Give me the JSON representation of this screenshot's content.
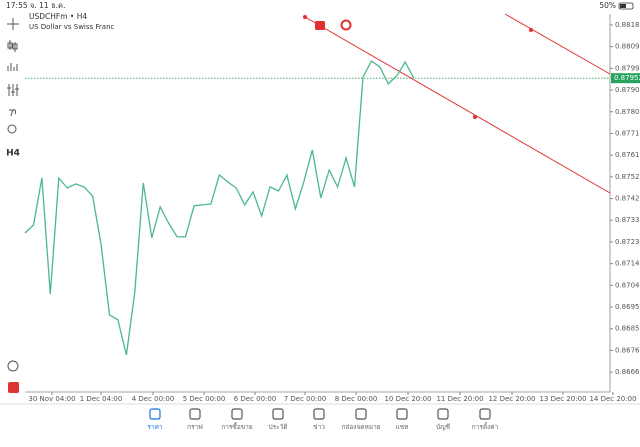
{
  "status_bar": {
    "time": "17:55",
    "date": "จ. 11 ธ.ค.",
    "battery": "50%"
  },
  "toolbar": {
    "timeframe": "H4"
  },
  "chart_data": {
    "type": "line",
    "symbol": "USDCHFm • H4",
    "description": "US Dollar vs Swiss Franc",
    "color": "#4cb88a",
    "values": [
      0.87274,
      0.87309,
      0.87515,
      0.87007,
      0.87515,
      0.87471,
      0.87489,
      0.87476,
      0.87436,
      0.87226,
      0.86915,
      0.86894,
      0.8674,
      0.87016,
      0.87493,
      0.87253,
      0.87388,
      0.87318,
      0.87257,
      0.87257,
      0.87393,
      0.87397,
      0.87401,
      0.87528,
      0.87498,
      0.87471,
      0.87397,
      0.87454,
      0.87349,
      0.87476,
      0.87458,
      0.87528,
      0.8738,
      0.87498,
      0.87638,
      0.87428,
      0.8755,
      0.87476,
      0.87603,
      0.87476,
      0.87957,
      0.88027,
      0.88001,
      0.87927,
      0.87962,
      0.88023,
      0.87953
    ],
    "ylim": [
      0.86578,
      0.88233
    ],
    "yticks": [
      0.88185,
      {
        "value": 0.8809,
        "label": "0.88090"
      },
      0.87995,
      {
        "value": 0.879,
        "label": "0.87900"
      },
      0.87805,
      {
        "value": 0.8771,
        "label": "0.87710"
      },
      0.87615,
      {
        "value": 0.8752,
        "label": "0.87520"
      },
      0.87425,
      {
        "value": 0.8733,
        "label": "0.87330"
      },
      0.87235,
      {
        "value": 0.8714,
        "label": "0.87140"
      },
      0.87045,
      {
        "value": 0.8695,
        "label": "0.86950"
      },
      0.86855,
      {
        "value": 0.8676,
        "label": "0.86760"
      },
      0.86665
    ],
    "x_tick_labels": [
      "30 Nov 04:00",
      "1 Dec 04:00",
      "4 Dec 00:00",
      "5 Dec 00:00",
      "6 Dec 00:00",
      "7 Dec 00:00",
      "8 Dec 00:00",
      "10 Dec 20:00",
      "11 Dec 20:00",
      "12 Dec 20:00",
      "13 Dec 20:00",
      "14 Dec 20:00"
    ],
    "current_price": 0.87952,
    "current_price_color": "#27a35e"
  },
  "nav": {
    "items": [
      "ราคา",
      "กราฟ",
      "การซื้อขาย",
      "ประวัติ",
      "ข่าว",
      "กล่องจดหมาย",
      "แชท",
      "บัญชี",
      "การตั้งค่า"
    ],
    "active": 0,
    "active_color": "#1a73e8"
  }
}
